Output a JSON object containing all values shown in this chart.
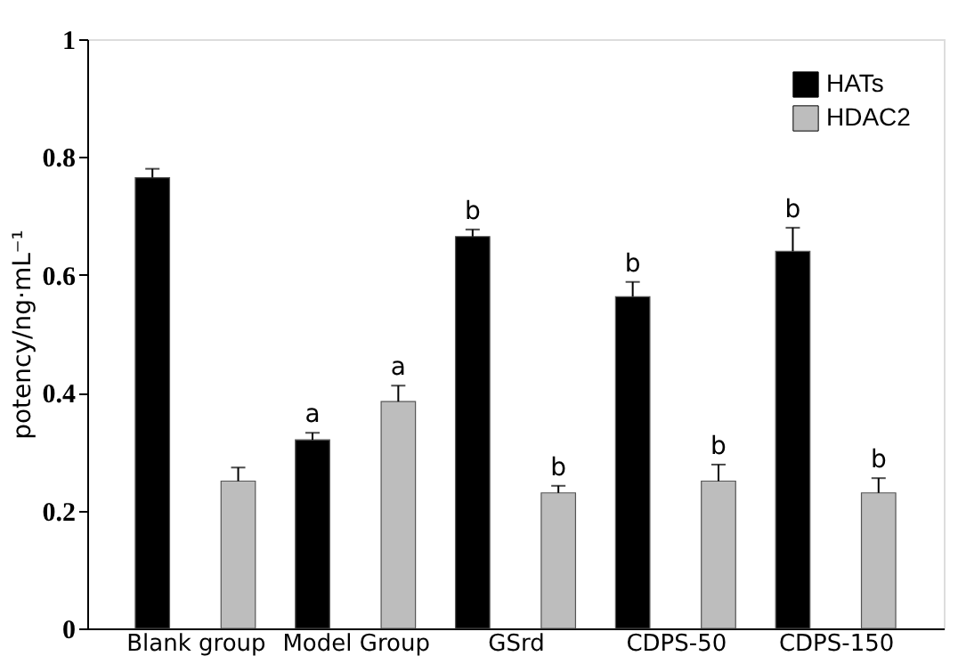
{
  "chart_data": {
    "type": "bar",
    "ylabel": "potency/ng·mL⁻¹",
    "categories": [
      "Blank group",
      "Model Group",
      "GSrd",
      "CDPS-50",
      "CDPS-150"
    ],
    "series": [
      {
        "name": "HATs",
        "color": "#000000",
        "values": [
          0.765,
          0.32,
          0.665,
          0.563,
          0.64
        ],
        "errors": [
          [
            0.765,
            0.78
          ],
          [
            0.32,
            0.332
          ],
          [
            0.665,
            0.677
          ],
          [
            0.563,
            0.588
          ],
          [
            0.64,
            0.68
          ]
        ],
        "value_labels": [
          null,
          "a",
          "b",
          "b",
          "b"
        ]
      },
      {
        "name": "HDAC2",
        "color": "#bdbdbd",
        "values": [
          0.25,
          0.385,
          0.23,
          0.25,
          0.23
        ],
        "errors": [
          [
            0.25,
            0.273
          ],
          [
            0.385,
            0.412
          ],
          [
            0.23,
            0.242
          ],
          [
            0.25,
            0.278
          ],
          [
            0.23,
            0.255
          ]
        ],
        "value_labels": [
          null,
          "a",
          "b",
          "b",
          "b"
        ]
      }
    ],
    "ylim": [
      0,
      1
    ],
    "yticks": [
      0,
      0.2,
      0.4,
      0.6,
      0.8,
      1
    ],
    "grid": false,
    "legend": "top right"
  }
}
